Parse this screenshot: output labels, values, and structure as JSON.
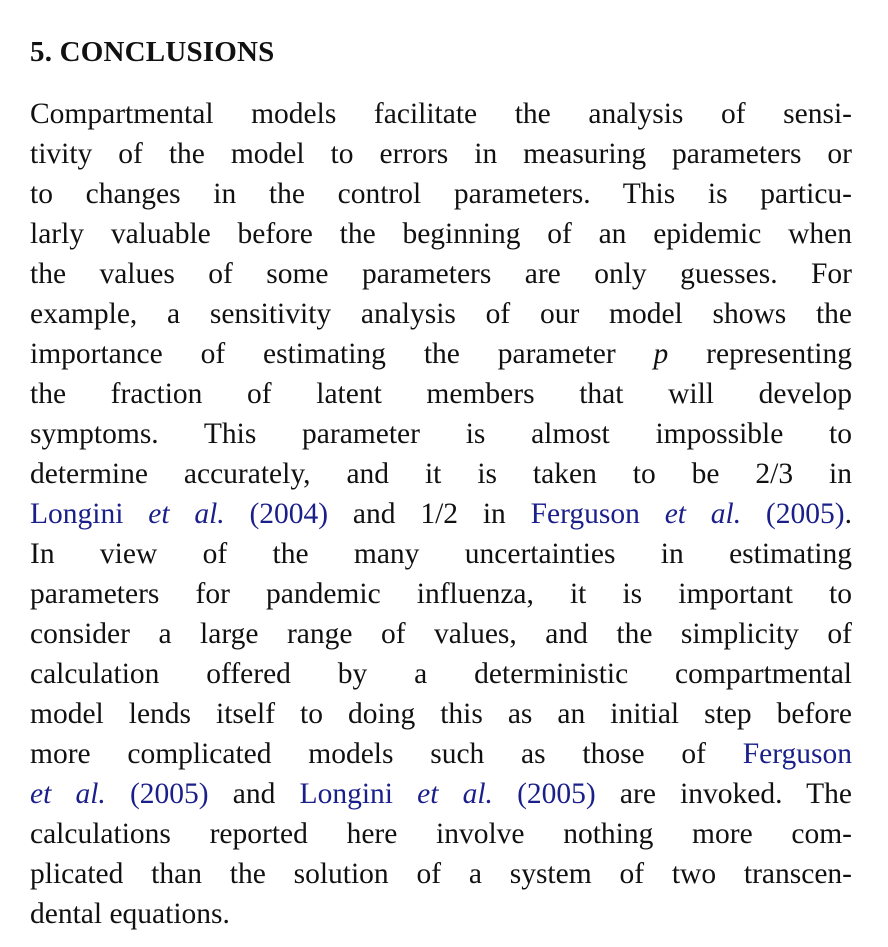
{
  "section": {
    "heading": "5. CONCLUSIONS"
  },
  "paragraph": {
    "lines": [
      {
        "parts": [
          {
            "text": "Compartmental models facilitate the analysis of sensi-"
          }
        ]
      },
      {
        "parts": [
          {
            "text": "tivity of the model to errors in measuring parameters or"
          }
        ]
      },
      {
        "parts": [
          {
            "text": "to changes in the control parameters. This is particu-"
          }
        ]
      },
      {
        "parts": [
          {
            "text": "larly valuable before the beginning of an epidemic when"
          }
        ]
      },
      {
        "parts": [
          {
            "text": "the values of some parameters are only guesses. For"
          }
        ]
      },
      {
        "parts": [
          {
            "text": "example, a sensitivity analysis of our model shows the"
          }
        ]
      },
      {
        "parts": [
          {
            "text": "importance of estimating the parameter "
          },
          {
            "text": "p",
            "style": "it"
          },
          {
            "text": " representing"
          }
        ]
      },
      {
        "parts": [
          {
            "text": "the fraction of latent members that will develop"
          }
        ]
      },
      {
        "parts": [
          {
            "text": "symptoms. This parameter is almost impossible to"
          }
        ]
      },
      {
        "parts": [
          {
            "text": "determine accurately, and it is taken to be 2/3 in"
          }
        ]
      },
      {
        "parts": [
          {
            "text": "Longini ",
            "style": "cite"
          },
          {
            "text": "et al.",
            "style": "cite it"
          },
          {
            "text": " (2004)",
            "style": "cite"
          },
          {
            "text": " and 1/2 in "
          },
          {
            "text": "Ferguson ",
            "style": "cite"
          },
          {
            "text": "et al.",
            "style": "cite it"
          },
          {
            "text": " (2005)",
            "style": "cite"
          },
          {
            "text": "."
          }
        ]
      },
      {
        "parts": [
          {
            "text": "In view of the many uncertainties in estimating"
          }
        ]
      },
      {
        "parts": [
          {
            "text": "parameters for pandemic influenza, it is important to"
          }
        ]
      },
      {
        "parts": [
          {
            "text": "consider a large range of values, and the simplicity of"
          }
        ]
      },
      {
        "parts": [
          {
            "text": "calculation offered by a deterministic compartmental"
          }
        ]
      },
      {
        "parts": [
          {
            "text": "model lends itself to doing this as an initial step before"
          }
        ]
      },
      {
        "parts": [
          {
            "text": "more complicated models such as those of "
          },
          {
            "text": "Ferguson",
            "style": "cite"
          }
        ]
      },
      {
        "parts": [
          {
            "text": "et al.",
            "style": "cite it"
          },
          {
            "text": " (2005)",
            "style": "cite"
          },
          {
            "text": " and "
          },
          {
            "text": "Longini ",
            "style": "cite"
          },
          {
            "text": "et al.",
            "style": "cite it"
          },
          {
            "text": " (2005)",
            "style": "cite"
          },
          {
            "text": " are invoked. The"
          }
        ]
      },
      {
        "parts": [
          {
            "text": "calculations reported here involve nothing more com-"
          }
        ]
      },
      {
        "parts": [
          {
            "text": "plicated than the solution of a system of two transcen-"
          }
        ]
      },
      {
        "parts": [
          {
            "text": "dental equations."
          }
        ],
        "last": true
      }
    ]
  }
}
